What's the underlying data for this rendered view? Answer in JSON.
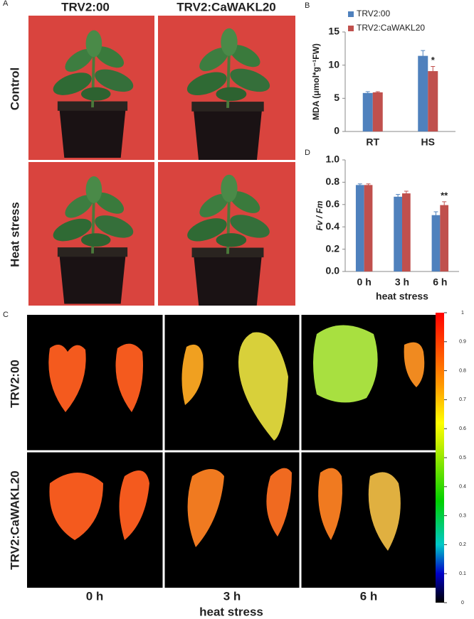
{
  "panel_labels": [
    "A",
    "B",
    "C",
    "D"
  ],
  "panel_a": {
    "columns": [
      "TRV2:00",
      "TRV2:CaWAKL20"
    ],
    "rows": [
      "Control",
      "Heat stress"
    ]
  },
  "panel_c": {
    "rows": [
      "TRV2:00",
      "TRV2:CaWAKL20"
    ],
    "columns": [
      "0 h",
      "3 h",
      "6 h"
    ],
    "xlabel": "heat stress",
    "colorbar_ticks": [
      0,
      0.1,
      0.2,
      0.3,
      0.4,
      0.5,
      0.6,
      0.7,
      0.8,
      0.9,
      1
    ]
  },
  "chart_data": [
    {
      "type": "bar",
      "categories": [
        "RT",
        "HS"
      ],
      "ylabel": "MDA (μmol*g⁻¹FW)",
      "ylim": [
        0,
        15
      ],
      "yticks": [
        0,
        5,
        10,
        15
      ],
      "legend": "top-left",
      "series": [
        {
          "name": "TRV2:00",
          "color": "#4f81bd",
          "values": [
            5.8,
            11.4
          ],
          "errors": [
            0.2,
            0.8
          ]
        },
        {
          "name": "TRV2:CaWAKL20",
          "color": "#c0504d",
          "values": [
            5.9,
            9.1
          ],
          "errors": [
            0.1,
            0.7
          ],
          "significance": [
            null,
            "*"
          ]
        }
      ]
    },
    {
      "type": "bar",
      "categories": [
        "0 h",
        "3 h",
        "6 h"
      ],
      "xlabel": "heat stress",
      "ylabel": "Fv / Fm",
      "ylim": [
        0,
        1
      ],
      "yticks": [
        {
          "value": 0,
          "label": "0.0"
        },
        0.2,
        0.4,
        0.6,
        0.8,
        {
          "value": 1,
          "label": "1.0"
        }
      ],
      "series": [
        {
          "name": "TRV2:00",
          "color": "#4f81bd",
          "values": [
            0.775,
            0.67,
            0.505
          ],
          "errors": [
            0.01,
            0.02,
            0.03
          ]
        },
        {
          "name": "TRV2:CaWAKL20",
          "color": "#c0504d",
          "values": [
            0.775,
            0.7,
            0.595
          ],
          "errors": [
            0.01,
            0.02,
            0.03
          ],
          "significance": [
            null,
            null,
            "**"
          ]
        }
      ]
    }
  ]
}
